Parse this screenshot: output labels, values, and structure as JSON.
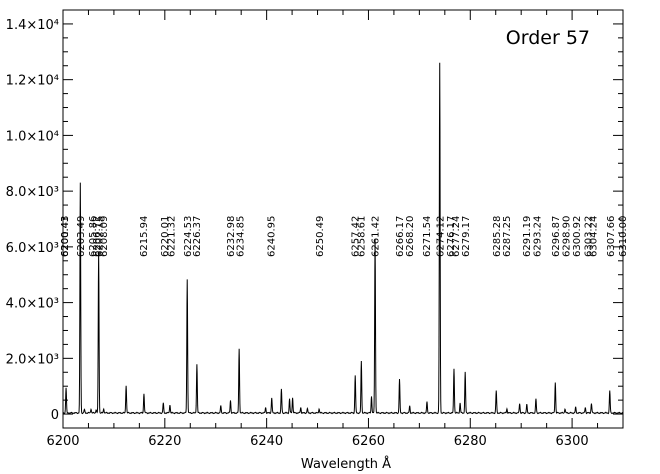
{
  "chart_data": {
    "type": "line",
    "title": "Order 57",
    "xlabel": "Wavelength Å",
    "ylabel": "",
    "xlim": [
      6200,
      6310
    ],
    "ylim": [
      -500,
      14500
    ],
    "x_ticks": [
      6200,
      6220,
      6240,
      6260,
      6280,
      6300
    ],
    "x_tick_labels": [
      "6200",
      "6220",
      "6240",
      "6260",
      "6280",
      "6300"
    ],
    "y_ticks": [
      0,
      2000,
      4000,
      6000,
      8000,
      10000,
      12000,
      14000
    ],
    "y_tick_labels": [
      "0",
      "2.0×10³",
      "4.0×10³",
      "6.0×10³",
      "8.0×10³",
      "1.0×10⁴",
      "1.2×10⁴",
      "1.4×10⁴"
    ],
    "grid": false,
    "line_labels": [
      "6200.43",
      "6200.43",
      "6203.49",
      "6205.86",
      "6206.72",
      "6207.15",
      "6208.09",
      "6215.94",
      "6220.01",
      "6221.32",
      "6224.53",
      "6226.37",
      "6232.98",
      "6234.85",
      "6240.95",
      "6250.49",
      "6257.42",
      "6258.61",
      "6261.42",
      "6266.17",
      "6268.20",
      "6271.54",
      "6274.12",
      "6276.17",
      "6277.24",
      "6279.17",
      "6285.28",
      "6287.25",
      "6291.19",
      "6293.24",
      "6296.87",
      "6298.90",
      "6300.92",
      "6303.22",
      "6304.24",
      "6307.66",
      "6310.00"
    ],
    "peaks": [
      {
        "x": 6200.6,
        "y": 900
      },
      {
        "x": 6203.4,
        "y": 8250
      },
      {
        "x": 6204.2,
        "y": 120
      },
      {
        "x": 6205.5,
        "y": 150
      },
      {
        "x": 6206.5,
        "y": 120
      },
      {
        "x": 6207.0,
        "y": 5750
      },
      {
        "x": 6208.0,
        "y": 150
      },
      {
        "x": 6212.4,
        "y": 1000
      },
      {
        "x": 6215.9,
        "y": 700
      },
      {
        "x": 6219.7,
        "y": 350
      },
      {
        "x": 6221.0,
        "y": 300
      },
      {
        "x": 6224.4,
        "y": 4800
      },
      {
        "x": 6226.3,
        "y": 1750
      },
      {
        "x": 6231.0,
        "y": 250
      },
      {
        "x": 6232.9,
        "y": 450
      },
      {
        "x": 6234.6,
        "y": 2300
      },
      {
        "x": 6239.8,
        "y": 200
      },
      {
        "x": 6241.0,
        "y": 550
      },
      {
        "x": 6242.9,
        "y": 850
      },
      {
        "x": 6244.5,
        "y": 500
      },
      {
        "x": 6245.1,
        "y": 550
      },
      {
        "x": 6246.7,
        "y": 200
      },
      {
        "x": 6248.0,
        "y": 150
      },
      {
        "x": 6250.3,
        "y": 150
      },
      {
        "x": 6257.4,
        "y": 1350
      },
      {
        "x": 6258.6,
        "y": 1850
      },
      {
        "x": 6260.6,
        "y": 600
      },
      {
        "x": 6261.3,
        "y": 6250
      },
      {
        "x": 6266.1,
        "y": 1200
      },
      {
        "x": 6268.1,
        "y": 250
      },
      {
        "x": 6271.5,
        "y": 400
      },
      {
        "x": 6274.0,
        "y": 12550
      },
      {
        "x": 6276.8,
        "y": 1600
      },
      {
        "x": 6278.0,
        "y": 350
      },
      {
        "x": 6279.0,
        "y": 1450
      },
      {
        "x": 6285.1,
        "y": 800
      },
      {
        "x": 6287.2,
        "y": 150
      },
      {
        "x": 6289.7,
        "y": 350
      },
      {
        "x": 6291.1,
        "y": 300
      },
      {
        "x": 6292.9,
        "y": 500
      },
      {
        "x": 6296.7,
        "y": 1100
      },
      {
        "x": 6298.6,
        "y": 150
      },
      {
        "x": 6300.7,
        "y": 200
      },
      {
        "x": 6302.6,
        "y": 200
      },
      {
        "x": 6303.8,
        "y": 350
      },
      {
        "x": 6307.4,
        "y": 800
      }
    ]
  }
}
